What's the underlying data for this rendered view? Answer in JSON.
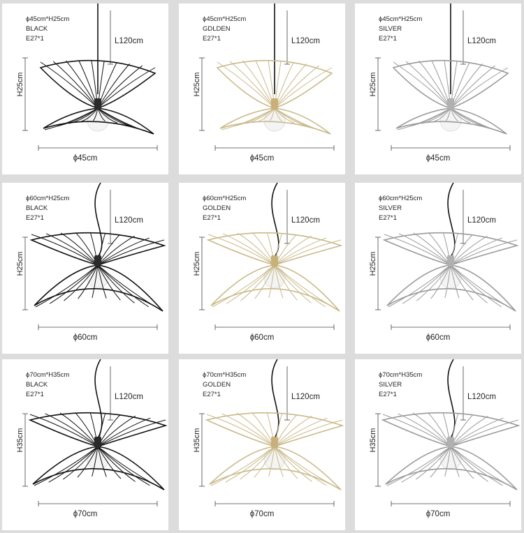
{
  "grid": {
    "rows": [
      {
        "panels": [
          {
            "size_text": "ϕ45cm*H25cm",
            "color_name": "BLACK",
            "socket": "E27*1",
            "length": "L120cm",
            "height": "H25cm",
            "width": "ϕ45cm",
            "wire_color": "#111111",
            "fitting_color": "#2a2a2a"
          },
          {
            "size_text": "ϕ45cm*H25cm",
            "color_name": "GDLDEN",
            "socket": "E27*1",
            "length": "L120cm",
            "height": "H25cm",
            "width": "ϕ45cm",
            "wire_color": "#c9b98a",
            "fitting_color": "#c7b07a"
          },
          {
            "size_text": "ϕ45cm*H25cm",
            "color_name": "SILVER",
            "socket": "E27*1",
            "length": "L120cm",
            "height": "H25cm",
            "width": "ϕ45cm",
            "wire_color": "#9a9a9a",
            "fitting_color": "#b0b0b0"
          }
        ]
      },
      {
        "panels": [
          {
            "size_text": "ϕ60cm*H25cm",
            "color_name": "BLACK",
            "socket": "E27*1",
            "length": "L120cm",
            "height": "H25cm",
            "width": "ϕ60cm",
            "wire_color": "#111111",
            "fitting_color": "#2a2a2a"
          },
          {
            "size_text": "ϕ60cm*H25cm",
            "color_name": "GOLDEN",
            "socket": "E27*1",
            "length": "L120cm",
            "height": "H25cm",
            "width": "ϕ60cm",
            "wire_color": "#c9b98a",
            "fitting_color": "#c7b07a"
          },
          {
            "size_text": "ϕ60cm*H25cm",
            "color_name": "SILVER",
            "socket": "E27*1",
            "length": "L120cm",
            "height": "H25cm",
            "width": "ϕ60cm",
            "wire_color": "#9a9a9a",
            "fitting_color": "#b0b0b0"
          }
        ]
      },
      {
        "panels": [
          {
            "size_text": "ϕ70cm*H35cm",
            "color_name": "BLACK",
            "socket": "E27*1",
            "length": "L120cm",
            "height": "H35cm",
            "width": "ϕ70cm",
            "wire_color": "#111111",
            "fitting_color": "#2a2a2a"
          },
          {
            "size_text": "ϕ70cm*H35cm",
            "color_name": "GOLDEN",
            "socket": "E27*1",
            "length": "L120cm",
            "height": "H35cm",
            "width": "ϕ70cm",
            "wire_color": "#c9b98a",
            "fitting_color": "#c7b07a"
          },
          {
            "size_text": "ϕ70cm*H35cm",
            "color_name": "SILVER",
            "socket": "E27*1",
            "length": "L120cm",
            "height": "H35cm",
            "width": "ϕ70cm",
            "wire_color": "#9a9a9a",
            "fitting_color": "#b0b0b0"
          }
        ]
      }
    ]
  }
}
